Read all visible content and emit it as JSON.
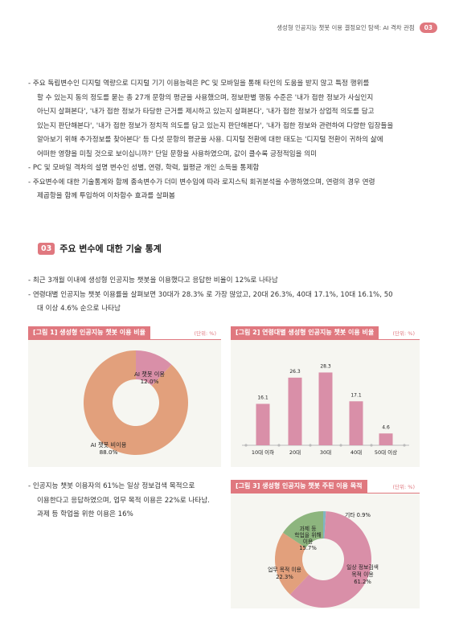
{
  "header": {
    "title": "생성형 인공지능 챗봇 이용 결정요인 탐색: AI 격차 관점",
    "page": "03"
  },
  "intro_bullets": [
    [
      "- 주요 독립변수인 디지털 역량으로 디지털 기기 이용능력은 PC 및 모바일을 통해 타인의 도움을 받지 않고 특정 행위를",
      "할 수 있는지 동의 정도를 묻는 총 27개 문항의 평균을 사용했으며, 정보판별 행동 수준은 '내가 접한 정보가 사실인지",
      "아닌지 살펴본다', '내가 접한 정보가 타당한 근거를 제시하고 있는지 살펴본다', '내가 접한 정보가 상업적 의도를 담고",
      "있는지 판단해본다', '내가 접한 정보가 정치적 의도를 담고 있는지 판단해본다', '내가 접한 정보와 관련하여 다양한 입장들을",
      "알아보기 위해 추가정보를 찾아본다' 등 다섯 문항의 평균을 사용. 디지털 전환에 대한 태도는 '디지털 전환이 귀하의 삶에",
      "어떠한 영향을 미칠 것으로 보이십니까?' 단일 문항을 사용하였으며, 값이 클수록 긍정적임을 의미"
    ],
    [
      "- PC 및 모바일 격차의 설명 변수인 성별, 연령, 학력, 월평균 개인 소득을 통제함"
    ],
    [
      "- 주요변수에 대한 기술통계와 함께 종속변수가 더미 변수임에 따라 로지스틱 회귀분석을 수행하였으며, 연령의 경우 연령",
      "제곱항을 함께 투입하여 이차함수 효과를 살펴봄"
    ]
  ],
  "section": {
    "num": "03",
    "title": "주요 변수에 대한 기술 통계"
  },
  "stat_bullets": [
    [
      "- 최근 3개월 이내에 생성형 인공지능 챗봇을 이용했다고 응답한 비율이 12%로 나타남"
    ],
    [
      "- 연령대별 인공지능 챗봇 이용률을 살펴보면 30대가 28.3% 로 가장 많았고, 20대 26.3%, 40대 17.1%, 10대 16.1%, 50",
      "대 이상 4.6% 순으로 나타남"
    ]
  ],
  "purpose_bullet": [
    "- 인공지능 챗봇 이용자의 61%는 일상 정보검색 목적으로",
    "이용한다고 응답하였으며, 업무 목적 이용은 22%로 나타남.",
    "과제 등 학업을 위한 이용은 16%"
  ],
  "fig1": {
    "title": "[그림 1]  생성형 인공지능 챗봇 이용 비율",
    "unit": "(단위: %)"
  },
  "fig2": {
    "title": "[그림 2]  연령대별 생성형 인공지능 챗봇 이용 비율",
    "unit": "(단위: %)"
  },
  "fig3": {
    "title": "[그림 3]  생성형 인공지능 챗봇 주된 이용 목적",
    "unit": "(단위: %)"
  },
  "chart_data": [
    {
      "type": "pie",
      "title": "[그림 1]  생성형 인공지능 챗봇 이용 비율",
      "slices": [
        {
          "label": "AI 챗봇 이용",
          "value": 12.0,
          "color": "#d98fa8"
        },
        {
          "label": "AI 챗봇 비이용",
          "value": 88.0,
          "color": "#e2a07c"
        }
      ]
    },
    {
      "type": "bar",
      "title": "[그림 2]  연령대별 생성형 인공지능 챗봇 이용 비율",
      "categories": [
        "10대 이하",
        "20대",
        "30대",
        "40대",
        "50대 이상"
      ],
      "values": [
        16.1,
        26.3,
        28.3,
        17.1,
        4.6
      ],
      "color": "#d98fa8",
      "ylim": [
        0,
        30
      ]
    },
    {
      "type": "pie",
      "title": "[그림 3]  생성형 인공지능 챗봇 주된 이용 목적",
      "slices": [
        {
          "label": "기타",
          "value": 0.9,
          "color": "#7fb6c2"
        },
        {
          "label": "일상 정보검색 목적 이용",
          "value": 61.2,
          "color": "#d98fa8"
        },
        {
          "label": "업무 목적 이용",
          "value": 22.3,
          "color": "#e2a07c"
        },
        {
          "label": "과제 등 학업을 위해 이용",
          "value": 15.7,
          "color": "#8db57e"
        }
      ]
    }
  ]
}
